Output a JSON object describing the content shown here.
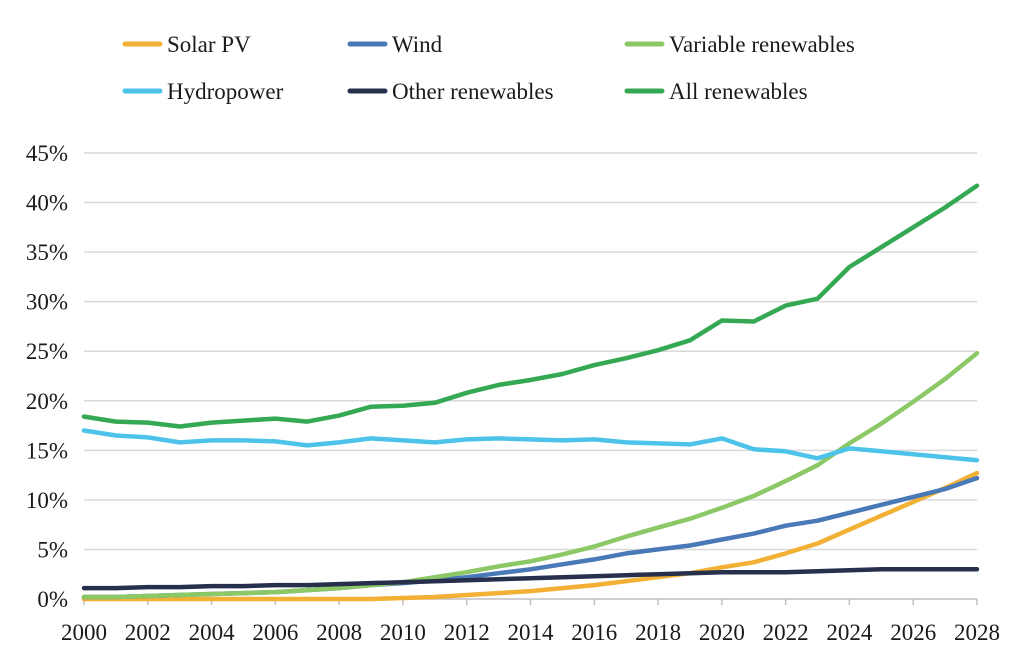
{
  "chart_data": {
    "type": "line",
    "title": "",
    "xlabel": "",
    "ylabel": "",
    "x": [
      2000,
      2001,
      2002,
      2003,
      2004,
      2005,
      2006,
      2007,
      2008,
      2009,
      2010,
      2011,
      2012,
      2013,
      2014,
      2015,
      2016,
      2017,
      2018,
      2019,
      2020,
      2021,
      2022,
      2023,
      2024,
      2025,
      2026,
      2027,
      2028
    ],
    "xticks": [
      "2000",
      "2002",
      "2004",
      "2006",
      "2008",
      "2010",
      "2012",
      "2014",
      "2016",
      "2018",
      "2020",
      "2022",
      "2024",
      "2026",
      "2028"
    ],
    "ylim": [
      0,
      45
    ],
    "yticks": [
      "0%",
      "5%",
      "10%",
      "15%",
      "20%",
      "25%",
      "30%",
      "35%",
      "40%",
      "45%"
    ],
    "grid": true,
    "legend_position": "top",
    "series": [
      {
        "name": "Solar PV",
        "color": "#f2b134",
        "values": [
          0,
          0,
          0,
          0,
          0,
          0,
          0,
          0,
          0,
          0,
          0.1,
          0.2,
          0.4,
          0.6,
          0.8,
          1.1,
          1.4,
          1.8,
          2.2,
          2.6,
          3.2,
          3.7,
          4.6,
          5.6,
          7.0,
          8.4,
          9.8,
          11.2,
          12.7
        ]
      },
      {
        "name": "Wind",
        "color": "#4a79b8",
        "values": [
          0.2,
          0.2,
          0.3,
          0.4,
          0.5,
          0.6,
          0.7,
          0.9,
          1.1,
          1.4,
          1.6,
          1.9,
          2.2,
          2.6,
          3.0,
          3.5,
          4.0,
          4.6,
          5.0,
          5.4,
          6.0,
          6.6,
          7.4,
          7.9,
          8.7,
          9.5,
          10.3,
          11.1,
          12.2
        ]
      },
      {
        "name": "Variable renewables",
        "color": "#8cc866",
        "values": [
          0.2,
          0.2,
          0.3,
          0.4,
          0.5,
          0.6,
          0.7,
          0.9,
          1.1,
          1.4,
          1.7,
          2.2,
          2.7,
          3.3,
          3.8,
          4.5,
          5.3,
          6.3,
          7.2,
          8.1,
          9.2,
          10.4,
          11.9,
          13.5,
          15.7,
          17.7,
          19.9,
          22.2,
          24.8
        ]
      },
      {
        "name": "Hydropower",
        "color": "#4dc3ea",
        "values": [
          17.0,
          16.5,
          16.3,
          15.8,
          16.0,
          16.0,
          15.9,
          15.5,
          15.8,
          16.2,
          16.0,
          15.8,
          16.1,
          16.2,
          16.1,
          16.0,
          16.1,
          15.8,
          15.7,
          15.6,
          16.2,
          15.1,
          14.9,
          14.2,
          15.2,
          14.9,
          14.6,
          14.3,
          14.0
        ]
      },
      {
        "name": "Other renewables",
        "color": "#26304d",
        "values": [
          1.1,
          1.1,
          1.2,
          1.2,
          1.3,
          1.3,
          1.4,
          1.4,
          1.5,
          1.6,
          1.7,
          1.8,
          1.9,
          2.0,
          2.1,
          2.2,
          2.3,
          2.4,
          2.5,
          2.6,
          2.7,
          2.7,
          2.7,
          2.8,
          2.9,
          3.0,
          3.0,
          3.0,
          3.0
        ]
      },
      {
        "name": "All renewables",
        "color": "#35a853",
        "values": [
          18.4,
          17.9,
          17.8,
          17.4,
          17.8,
          18.0,
          18.2,
          17.9,
          18.5,
          19.4,
          19.5,
          19.8,
          20.8,
          21.6,
          22.1,
          22.7,
          23.6,
          24.3,
          25.1,
          26.1,
          28.1,
          28.0,
          29.6,
          30.3,
          33.5,
          35.5,
          37.5,
          39.5,
          41.7
        ]
      }
    ]
  }
}
